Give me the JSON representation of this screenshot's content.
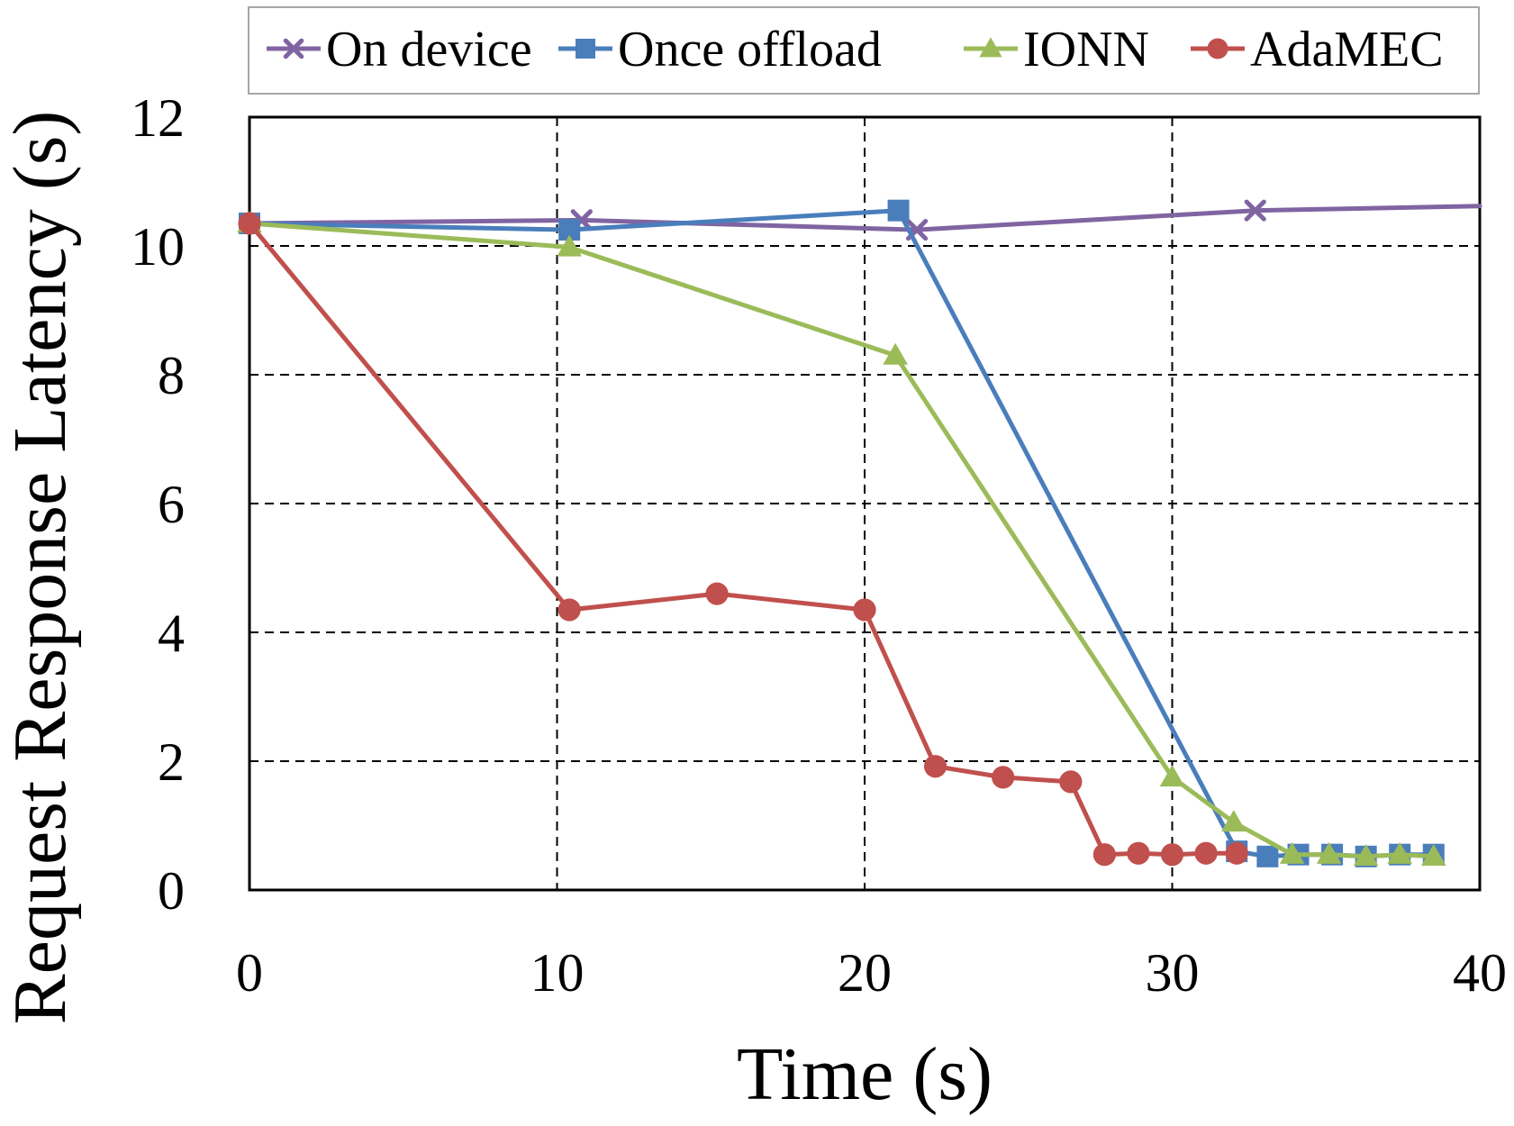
{
  "chart_data": {
    "type": "line",
    "title": "",
    "xlabel": "Time (s)",
    "ylabel": "Request Response Latency (s)",
    "xlim": [
      0,
      40
    ],
    "ylim": [
      0,
      12
    ],
    "xticks": [
      0,
      10,
      20,
      30,
      40
    ],
    "yticks": [
      0,
      2,
      4,
      6,
      8,
      10,
      12
    ],
    "xtick_labels": [
      "0",
      "10",
      "20",
      "30",
      "40"
    ],
    "ytick_labels": [
      "0",
      "2",
      "4",
      "6",
      "8",
      "10",
      "12"
    ],
    "grid": true,
    "grid_style": "dashed",
    "legend_position": "top",
    "series": [
      {
        "name": "On device",
        "color": "#8064A2",
        "marker": "x",
        "points": [
          [
            0,
            10.35
          ],
          [
            10.8,
            10.4
          ],
          [
            21.7,
            10.25
          ],
          [
            32.7,
            10.55
          ],
          [
            40,
            10.62
          ]
        ],
        "marked": [
          true,
          true,
          true,
          true,
          false
        ]
      },
      {
        "name": "Once offload",
        "color": "#4A7EBB",
        "marker": "square",
        "points": [
          [
            0,
            10.35
          ],
          [
            10.4,
            10.25
          ],
          [
            21.1,
            10.55
          ],
          [
            32.1,
            0.6
          ],
          [
            33.1,
            0.52
          ],
          [
            34.1,
            0.55
          ],
          [
            35.2,
            0.55
          ],
          [
            36.3,
            0.52
          ],
          [
            37.4,
            0.55
          ],
          [
            38.5,
            0.55
          ]
        ],
        "marked": [
          true,
          true,
          true,
          true,
          true,
          true,
          true,
          true,
          true,
          true
        ]
      },
      {
        "name": "IONN",
        "color": "#9BBB59",
        "marker": "triangle",
        "points": [
          [
            0,
            10.35
          ],
          [
            10.4,
            9.98
          ],
          [
            21.0,
            8.3
          ],
          [
            30.0,
            1.75
          ],
          [
            32.0,
            1.05
          ],
          [
            33.9,
            0.55
          ],
          [
            35.1,
            0.55
          ],
          [
            36.3,
            0.52
          ],
          [
            37.4,
            0.55
          ],
          [
            38.5,
            0.52
          ]
        ],
        "marked": [
          true,
          true,
          true,
          true,
          true,
          true,
          true,
          true,
          true,
          true
        ]
      },
      {
        "name": "AdaMEC",
        "color": "#C0504D",
        "marker": "circle",
        "points": [
          [
            0,
            10.35
          ],
          [
            10.4,
            4.35
          ],
          [
            15.2,
            4.6
          ],
          [
            20.0,
            4.35
          ],
          [
            22.3,
            1.92
          ],
          [
            24.5,
            1.75
          ],
          [
            26.7,
            1.68
          ],
          [
            27.8,
            0.55
          ],
          [
            28.9,
            0.57
          ],
          [
            30.0,
            0.55
          ],
          [
            31.1,
            0.57
          ],
          [
            32.1,
            0.57
          ]
        ],
        "marked": [
          true,
          true,
          true,
          true,
          true,
          true,
          true,
          true,
          true,
          true,
          true,
          true
        ]
      }
    ]
  }
}
